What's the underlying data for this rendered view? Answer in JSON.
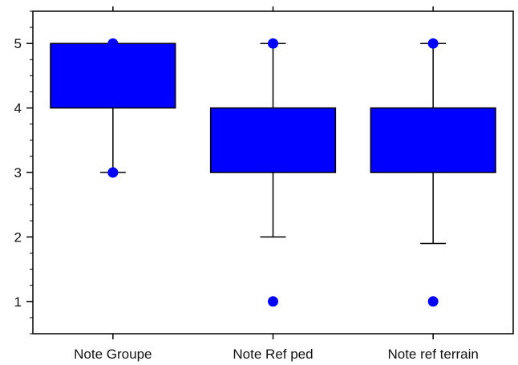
{
  "chart_data": {
    "type": "box",
    "title": "",
    "xlabel": "",
    "ylabel": "",
    "ylim": [
      0.5,
      5.5
    ],
    "yticks": [
      1,
      2,
      3,
      4,
      5
    ],
    "minor_tick_step": 0.25,
    "categories": [
      "Note Groupe",
      "Note Ref ped",
      "Note ref terrain"
    ],
    "boxes": [
      {
        "q1": 4,
        "q3": 5,
        "whisker_low": 3,
        "whisker_high": 5,
        "points": [
          5,
          3
        ]
      },
      {
        "q1": 3,
        "q3": 4,
        "whisker_low": 2,
        "whisker_high": 5,
        "points": [
          5,
          1
        ]
      },
      {
        "q1": 3,
        "q3": 4,
        "whisker_low": 1.9,
        "whisker_high": 5,
        "points": [
          5,
          1
        ]
      }
    ],
    "box_color": "#0000ff",
    "point_color": "#0000ff",
    "line_color": "#000000",
    "grid": false,
    "legend": "none"
  }
}
